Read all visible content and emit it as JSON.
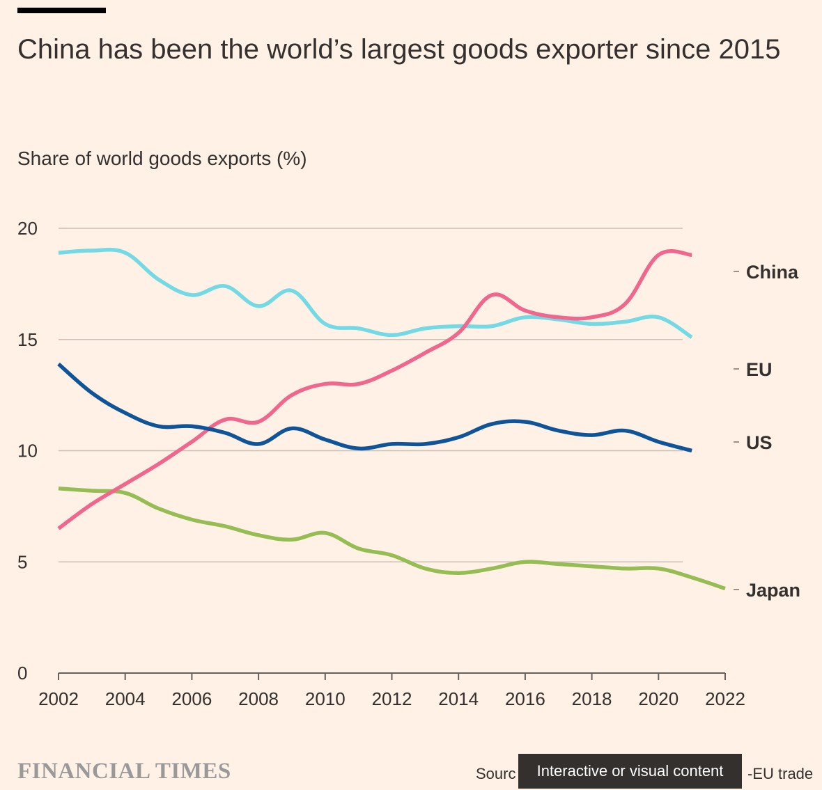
{
  "header": {
    "title": "China has been the world’s largest goods exporter since 2015",
    "subtitle": "Share of world goods exports (%)"
  },
  "footer": {
    "brand": "FINANCIAL TIMES",
    "source_visible_start": "Sourc",
    "source_visible_end": "-EU trade",
    "tooltip": "Interactive or visual content"
  },
  "colors": {
    "background": "#fff1e5",
    "China": "#f0668d",
    "EU": "#73dae5",
    "US": "#0f5499",
    "Japan": "#96bd54",
    "grid": "#c9c0b6",
    "text": "#33302e"
  },
  "chart_data": {
    "type": "line",
    "title": "China has been the world’s largest goods exporter since 2015",
    "ylabel": "Share of world goods exports (%)",
    "xlabel": "",
    "xlim": [
      2002,
      2022
    ],
    "ylim": [
      0,
      20
    ],
    "x_ticks": [
      "2002",
      "2004",
      "2006",
      "2008",
      "2010",
      "2012",
      "2014",
      "2016",
      "2018",
      "2020",
      "2022"
    ],
    "y_ticks": [
      "0",
      "5",
      "10",
      "15",
      "20"
    ],
    "grid": true,
    "legend": "right, labels at line ends",
    "series": [
      {
        "name": "China",
        "x": [
          2002,
          2003,
          2004,
          2005,
          2006,
          2007,
          2008,
          2009,
          2010,
          2011,
          2012,
          2013,
          2014,
          2015,
          2016,
          2017,
          2018,
          2019,
          2020,
          2021
        ],
        "values": [
          6.5,
          7.6,
          8.5,
          9.4,
          10.4,
          11.4,
          11.3,
          12.5,
          13.0,
          13.0,
          13.6,
          14.4,
          15.3,
          17.0,
          16.3,
          16.0,
          16.0,
          16.6,
          18.8,
          18.8
        ]
      },
      {
        "name": "EU",
        "x": [
          2002,
          2003,
          2004,
          2005,
          2006,
          2007,
          2008,
          2009,
          2010,
          2011,
          2012,
          2013,
          2014,
          2015,
          2016,
          2017,
          2018,
          2019,
          2020,
          2021
        ],
        "values": [
          18.9,
          19.0,
          18.9,
          17.7,
          17.0,
          17.4,
          16.5,
          17.2,
          15.7,
          15.5,
          15.2,
          15.5,
          15.6,
          15.6,
          16.0,
          15.9,
          15.7,
          15.8,
          16.0,
          15.1
        ]
      },
      {
        "name": "US",
        "x": [
          2002,
          2003,
          2004,
          2005,
          2006,
          2007,
          2008,
          2009,
          2010,
          2011,
          2012,
          2013,
          2014,
          2015,
          2016,
          2017,
          2018,
          2019,
          2020,
          2021
        ],
        "values": [
          13.9,
          12.6,
          11.7,
          11.1,
          11.1,
          10.8,
          10.3,
          11.0,
          10.5,
          10.1,
          10.3,
          10.3,
          10.6,
          11.2,
          11.3,
          10.9,
          10.7,
          10.9,
          10.4,
          10.0
        ]
      },
      {
        "name": "Japan",
        "x": [
          2002,
          2003,
          2004,
          2005,
          2006,
          2007,
          2008,
          2009,
          2010,
          2011,
          2012,
          2013,
          2014,
          2015,
          2016,
          2017,
          2018,
          2019,
          2020,
          2021,
          2022
        ],
        "values": [
          8.3,
          8.2,
          8.1,
          7.4,
          6.9,
          6.6,
          6.2,
          6.0,
          6.3,
          5.6,
          5.3,
          4.7,
          4.5,
          4.7,
          5.0,
          4.9,
          4.8,
          4.7,
          4.7,
          4.3,
          3.8
        ]
      }
    ]
  }
}
